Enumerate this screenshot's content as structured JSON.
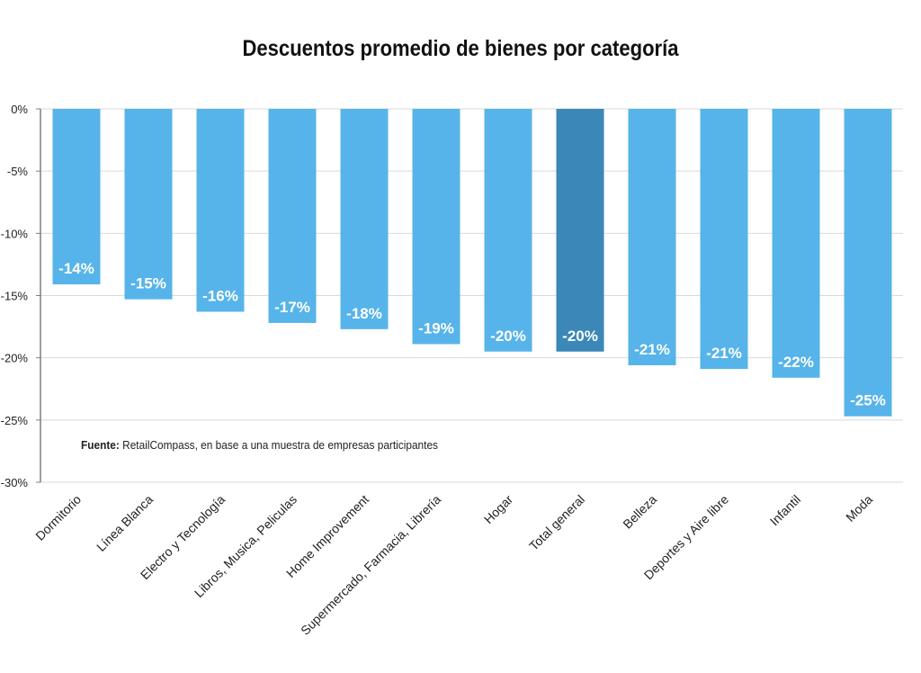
{
  "chart_data": {
    "type": "bar",
    "title": "Descuentos promedio de bienes por categoría",
    "xlabel": "",
    "ylabel": "",
    "ylim": [
      -30,
      0
    ],
    "yticks": [
      "0%",
      "-5%",
      "-10%",
      "-15%",
      "-20%",
      "-25%",
      "-30%"
    ],
    "ytick_values": [
      0,
      -5,
      -10,
      -15,
      -20,
      -25,
      -30
    ],
    "grid": true,
    "categories": [
      "Dormitorio",
      "Línea Blanca",
      "Electro y Tecnología",
      "Libros, Musica, Peliculas",
      "Home Improvement",
      "Supermercado, Farmacia, Librería",
      "Hogar",
      "Total general",
      "Belleza",
      "Deportes y Aire libre",
      "Infantil",
      "Moda"
    ],
    "values": [
      -14.1,
      -15.3,
      -16.3,
      -17.2,
      -17.7,
      -18.9,
      -19.5,
      -19.5,
      -20.6,
      -20.9,
      -21.6,
      -24.7
    ],
    "data_labels": [
      "-14%",
      "-15%",
      "-16%",
      "-17%",
      "-18%",
      "-19%",
      "-20%",
      "-20%",
      "-21%",
      "-21%",
      "-22%",
      "-25%"
    ],
    "highlight_index": 7,
    "colors": {
      "bar": "#56b4ea",
      "highlight": "#3a87b8",
      "grid": "#d9d9d9",
      "axis": "#7f7f7f"
    },
    "annotation": {
      "bold": "Fuente:",
      "text": " RetailCompass, en base a una muestra de empresas participantes"
    }
  }
}
